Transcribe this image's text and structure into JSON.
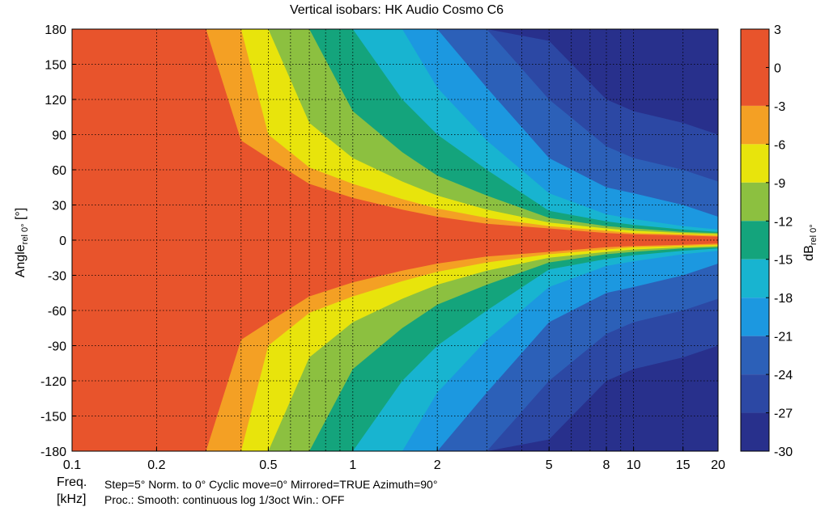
{
  "chart_data": {
    "type": "heatmap",
    "title": "Vertical isobars: HK Audio  Cosmo  C6",
    "xlabel_line1": "Freq.",
    "xlabel_line2": "[kHz]",
    "ylabel_main": "Angle",
    "ylabel_sub": "rel 0°",
    "ylabel_unit": " [°]",
    "colorbar_label_main": "dB",
    "colorbar_label_sub": "rel 0°",
    "x_scale": "log",
    "xlim": [
      0.1,
      20
    ],
    "ylim": [
      -180,
      180
    ],
    "x_ticks": [
      {
        "value": 0.1,
        "label": "0.1"
      },
      {
        "value": 0.2,
        "label": "0.2"
      },
      {
        "value": 0.5,
        "label": "0.5"
      },
      {
        "value": 1,
        "label": "1"
      },
      {
        "value": 2,
        "label": "2"
      },
      {
        "value": 5,
        "label": "5"
      },
      {
        "value": 8,
        "label": "8"
      },
      {
        "value": 10,
        "label": "10"
      },
      {
        "value": 15,
        "label": "15"
      },
      {
        "value": 20,
        "label": "20"
      }
    ],
    "x_minor_grid": [
      0.3,
      0.4,
      0.6,
      0.7,
      0.8,
      0.9,
      3,
      4,
      6,
      7,
      9
    ],
    "y_ticks": [
      180,
      150,
      120,
      90,
      60,
      30,
      0,
      -30,
      -60,
      -90,
      -120,
      -150,
      -180
    ],
    "grid": true,
    "colorbar": {
      "ticks": [
        3,
        0,
        -3,
        -6,
        -9,
        -12,
        -15,
        -18,
        -21,
        -24,
        -27,
        -30
      ],
      "levels": [
        {
          "from": -3,
          "to": 3,
          "color": "#e8542c"
        },
        {
          "from": -6,
          "to": -3,
          "color": "#f4a024"
        },
        {
          "from": -9,
          "to": -6,
          "color": "#e8e40c"
        },
        {
          "from": -12,
          "to": -9,
          "color": "#8cc040"
        },
        {
          "from": -15,
          "to": -12,
          "color": "#14a47c"
        },
        {
          "from": -18,
          "to": -15,
          "color": "#18b4d0"
        },
        {
          "from": -21,
          "to": -18,
          "color": "#1c98e0"
        },
        {
          "from": -24,
          "to": -21,
          "color": "#2c60b8"
        },
        {
          "from": -27,
          "to": -24,
          "color": "#2c48a4"
        },
        {
          "from": -30,
          "to": -27,
          "color": "#28308c"
        }
      ]
    },
    "contours_approx_half_angle_deg": {
      "freq_khz": [
        0.1,
        0.15,
        0.18,
        0.2,
        0.25,
        0.3,
        0.4,
        0.5,
        0.7,
        1,
        1.5,
        2,
        3,
        5,
        8,
        10,
        15,
        20
      ],
      "-3": [
        180,
        180,
        180,
        180,
        180,
        180,
        85,
        70,
        48,
        36,
        26,
        20,
        14,
        10,
        6,
        5,
        4,
        3
      ],
      "-6": [
        180,
        180,
        180,
        180,
        180,
        180,
        180,
        90,
        62,
        48,
        35,
        27,
        19,
        12,
        8,
        6,
        5,
        4
      ],
      "-9": [
        180,
        180,
        180,
        180,
        180,
        180,
        180,
        180,
        100,
        70,
        50,
        38,
        26,
        15,
        10,
        8,
        6,
        5
      ],
      "-12": [
        180,
        180,
        180,
        180,
        180,
        180,
        180,
        180,
        180,
        110,
        75,
        55,
        38,
        19,
        12,
        10,
        7,
        6
      ],
      "-15": [
        180,
        180,
        180,
        180,
        180,
        180,
        180,
        180,
        180,
        180,
        120,
        90,
        60,
        25,
        16,
        13,
        9,
        7
      ],
      "-18": [
        180,
        180,
        180,
        180,
        180,
        180,
        180,
        180,
        180,
        180,
        180,
        130,
        85,
        40,
        22,
        18,
        12,
        9
      ],
      "-21": [
        180,
        180,
        180,
        180,
        180,
        180,
        180,
        180,
        180,
        180,
        180,
        180,
        130,
        70,
        45,
        40,
        30,
        20
      ],
      "-24": [
        180,
        180,
        180,
        180,
        180,
        180,
        180,
        180,
        180,
        180,
        180,
        180,
        180,
        120,
        80,
        70,
        60,
        50
      ],
      "-27": [
        180,
        180,
        180,
        180,
        180,
        180,
        180,
        180,
        180,
        180,
        180,
        180,
        180,
        170,
        120,
        110,
        100,
        90
      ]
    }
  },
  "footer": {
    "line1": "Step=5°   Norm. to 0°   Cyclic move=0°   Mirrored=TRUE   Azimuth=90°",
    "line2": "Proc.: Smooth: continuous log 1/3oct   Win.: OFF"
  }
}
